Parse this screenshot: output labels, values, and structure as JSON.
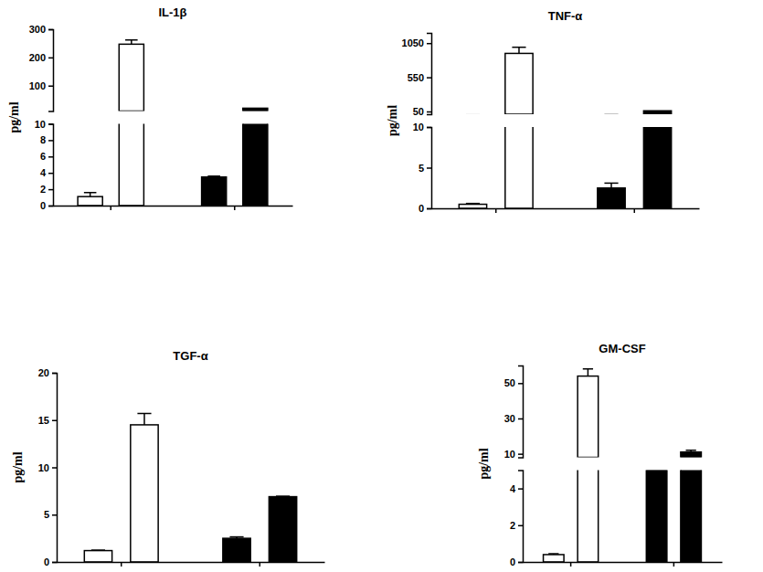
{
  "chart_data": [
    {
      "type": "bar",
      "title": "IL-1β",
      "y_label": "pg/ml",
      "categories": [
        null,
        null,
        null,
        null
      ],
      "values": [
        1.1,
        247,
        3.5,
        20
      ],
      "errors": [
        0.5,
        15,
        0.1,
        0
      ],
      "colors": [
        "#ffffff",
        "#ffffff",
        "#000000",
        "#000000"
      ],
      "segments": [
        {
          "ylim": [
            0,
            10
          ],
          "yticks": [
            0,
            2,
            4,
            6,
            8,
            10
          ]
        },
        {
          "ylim": [
            10,
            300
          ],
          "yticks": [
            100,
            200,
            300
          ]
        }
      ]
    },
    {
      "type": "bar",
      "title": "TNF-α",
      "y_label": "pg/ml",
      "categories": [
        null,
        null,
        null,
        null
      ],
      "values": [
        0.5,
        900,
        2.5,
        60
      ],
      "errors": [
        0.1,
        90,
        0.6,
        0
      ],
      "colors": [
        "#ffffff",
        "#ffffff",
        "#000000",
        "#000000"
      ],
      "segments": [
        {
          "ylim": [
            0,
            10
          ],
          "yticks": [
            0,
            5,
            10
          ]
        },
        {
          "ylim": [
            10,
            1200
          ],
          "yticks": [
            50,
            550,
            1050
          ]
        }
      ]
    },
    {
      "type": "bar",
      "title": "TGF-α",
      "y_label": "pg/ml",
      "categories": [
        null,
        null,
        null,
        null
      ],
      "values": [
        1.2,
        14.5,
        2.5,
        6.9
      ],
      "errors": [
        0.05,
        1.2,
        0.15,
        0.05
      ],
      "colors": [
        "#ffffff",
        "#ffffff",
        "#000000",
        "#000000"
      ],
      "segments": [
        {
          "ylim": [
            0,
            20
          ],
          "yticks": [
            0,
            5,
            10,
            15,
            20
          ]
        }
      ]
    },
    {
      "type": "bar",
      "title": "GM-CSF",
      "y_label": "pg/ml",
      "categories": [
        null,
        null,
        null,
        null
      ],
      "values": [
        0.4,
        54,
        5,
        11
      ],
      "errors": [
        0.05,
        4,
        0,
        1
      ],
      "colors": [
        "#ffffff",
        "#ffffff",
        "#000000",
        "#000000"
      ],
      "segments": [
        {
          "ylim": [
            0,
            5
          ],
          "yticks": [
            0,
            2,
            4
          ]
        },
        {
          "ylim": [
            8,
            60
          ],
          "yticks": [
            10,
            30,
            50
          ]
        }
      ]
    }
  ]
}
